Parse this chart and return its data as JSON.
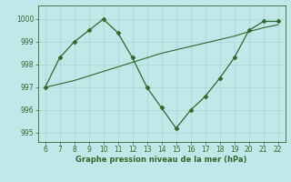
{
  "x": [
    6,
    7,
    8,
    9,
    10,
    11,
    12,
    13,
    14,
    15,
    16,
    17,
    18,
    19,
    20,
    21,
    22
  ],
  "y_main": [
    997.0,
    998.3,
    999.0,
    999.5,
    1000.0,
    999.4,
    998.3,
    997.0,
    996.1,
    995.2,
    996.0,
    996.6,
    997.4,
    998.3,
    999.5,
    999.9,
    999.9
  ],
  "y_trend": [
    997.0,
    997.15,
    997.3,
    997.5,
    997.7,
    997.9,
    998.1,
    998.3,
    998.5,
    998.65,
    998.8,
    998.95,
    999.1,
    999.25,
    999.45,
    999.62,
    999.75
  ],
  "ylim": [
    994.6,
    1000.6
  ],
  "xlim": [
    5.5,
    22.5
  ],
  "yticks": [
    995,
    996,
    997,
    998,
    999,
    1000
  ],
  "xticks": [
    6,
    7,
    8,
    9,
    10,
    11,
    12,
    13,
    14,
    15,
    16,
    17,
    18,
    19,
    20,
    21,
    22
  ],
  "line_color": "#2d6a2d",
  "bg_color": "#c0e8e8",
  "xlabel": "Graphe pression niveau de la mer (hPa)",
  "grid_color": "#a8d4d4",
  "marker": "D",
  "marker_size": 2.5,
  "tick_fontsize": 5.5,
  "xlabel_fontsize": 6.0
}
